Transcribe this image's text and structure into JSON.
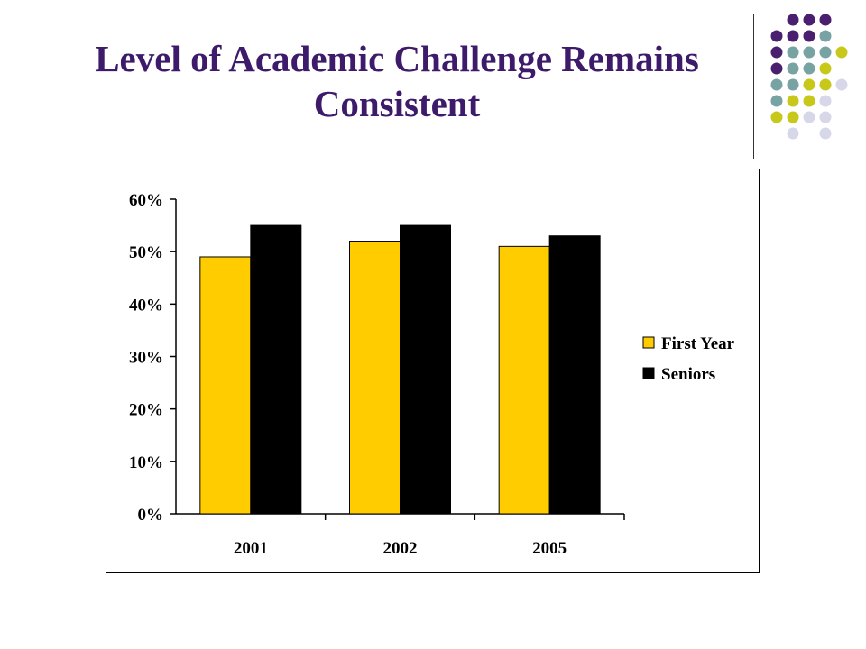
{
  "slide": {
    "title_line1": "Level of Academic Challenge Remains",
    "title_line2": "Consistent"
  },
  "decoration": {
    "dot_colors": {
      "purple": "#4b1f6f",
      "teal": "#78a3a3",
      "olive": "#c8c81a",
      "lavender": "#d7d7ea"
    }
  },
  "chart_data": {
    "type": "bar",
    "categories": [
      "2001",
      "2002",
      "2005"
    ],
    "series": [
      {
        "name": "First Year",
        "values": [
          0.49,
          0.52,
          0.51
        ],
        "color": "#ffcc00"
      },
      {
        "name": "Seniors",
        "values": [
          0.55,
          0.55,
          0.53
        ],
        "color": "#000000"
      }
    ],
    "ylim": [
      0,
      0.6
    ],
    "yticks": [
      "0%",
      "10%",
      "20%",
      "30%",
      "40%",
      "50%",
      "60%"
    ],
    "grid": false,
    "legend_position": "right"
  }
}
